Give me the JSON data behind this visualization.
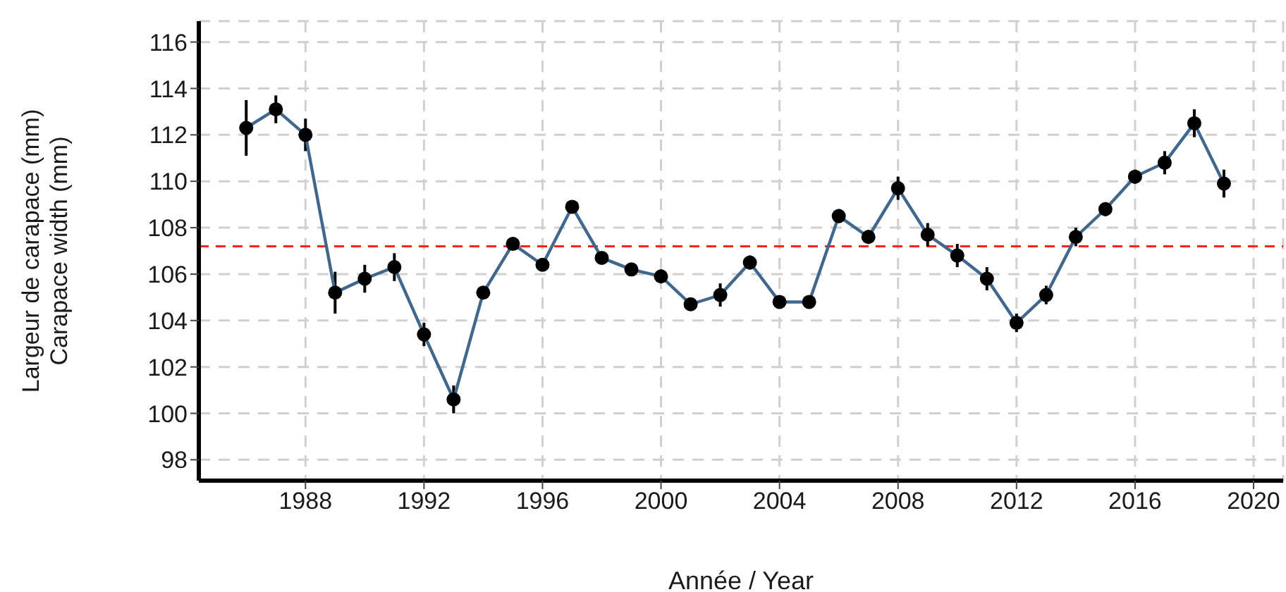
{
  "chart_data": {
    "type": "line",
    "xlabel": "Année / Year",
    "ylabel": "Largeur de carapace (mm)\nCarapace width (mm)",
    "x": [
      1986,
      1987,
      1988,
      1989,
      1990,
      1991,
      1992,
      1993,
      1994,
      1995,
      1996,
      1997,
      1998,
      1999,
      2000,
      2001,
      2002,
      2003,
      2004,
      2005,
      2006,
      2007,
      2008,
      2009,
      2010,
      2011,
      2012,
      2013,
      2014,
      2015,
      2016,
      2017,
      2018,
      2019
    ],
    "series": [
      {
        "color": "#41678c",
        "values": [
          112.3,
          113.1,
          112.0,
          105.2,
          105.8,
          106.3,
          103.4,
          100.6,
          105.2,
          107.3,
          106.4,
          108.9,
          106.7,
          106.2,
          105.9,
          104.7,
          105.1,
          106.5,
          104.8,
          104.8,
          108.5,
          107.6,
          109.7,
          107.7,
          106.8,
          105.8,
          103.9,
          105.1,
          107.6,
          108.8,
          110.2,
          110.8,
          112.5,
          109.9
        ],
        "errors": [
          1.2,
          0.6,
          0.7,
          0.9,
          0.6,
          0.6,
          0.5,
          0.6,
          0.2,
          0.2,
          0.2,
          0.2,
          0.2,
          0.2,
          0.3,
          0.2,
          0.5,
          0.3,
          0.2,
          0.2,
          0.3,
          0.3,
          0.5,
          0.5,
          0.5,
          0.5,
          0.4,
          0.4,
          0.4,
          0.3,
          0.3,
          0.5,
          0.6,
          0.6
        ]
      }
    ],
    "xlim": [
      1984.4,
      2021
    ],
    "xticks": [
      1988,
      1992,
      1996,
      2000,
      2004,
      2008,
      2012,
      2016,
      2020
    ],
    "ylim": [
      97.1,
      116.9
    ],
    "yticks": [
      98,
      100,
      102,
      104,
      106,
      108,
      110,
      112,
      114,
      116
    ],
    "grid": true,
    "marker": "circle",
    "line_style": "solid",
    "ref_lines": [
      {
        "axis": "y",
        "value": 107.2,
        "color": "#ff2020",
        "line_style": "dashed"
      }
    ]
  }
}
